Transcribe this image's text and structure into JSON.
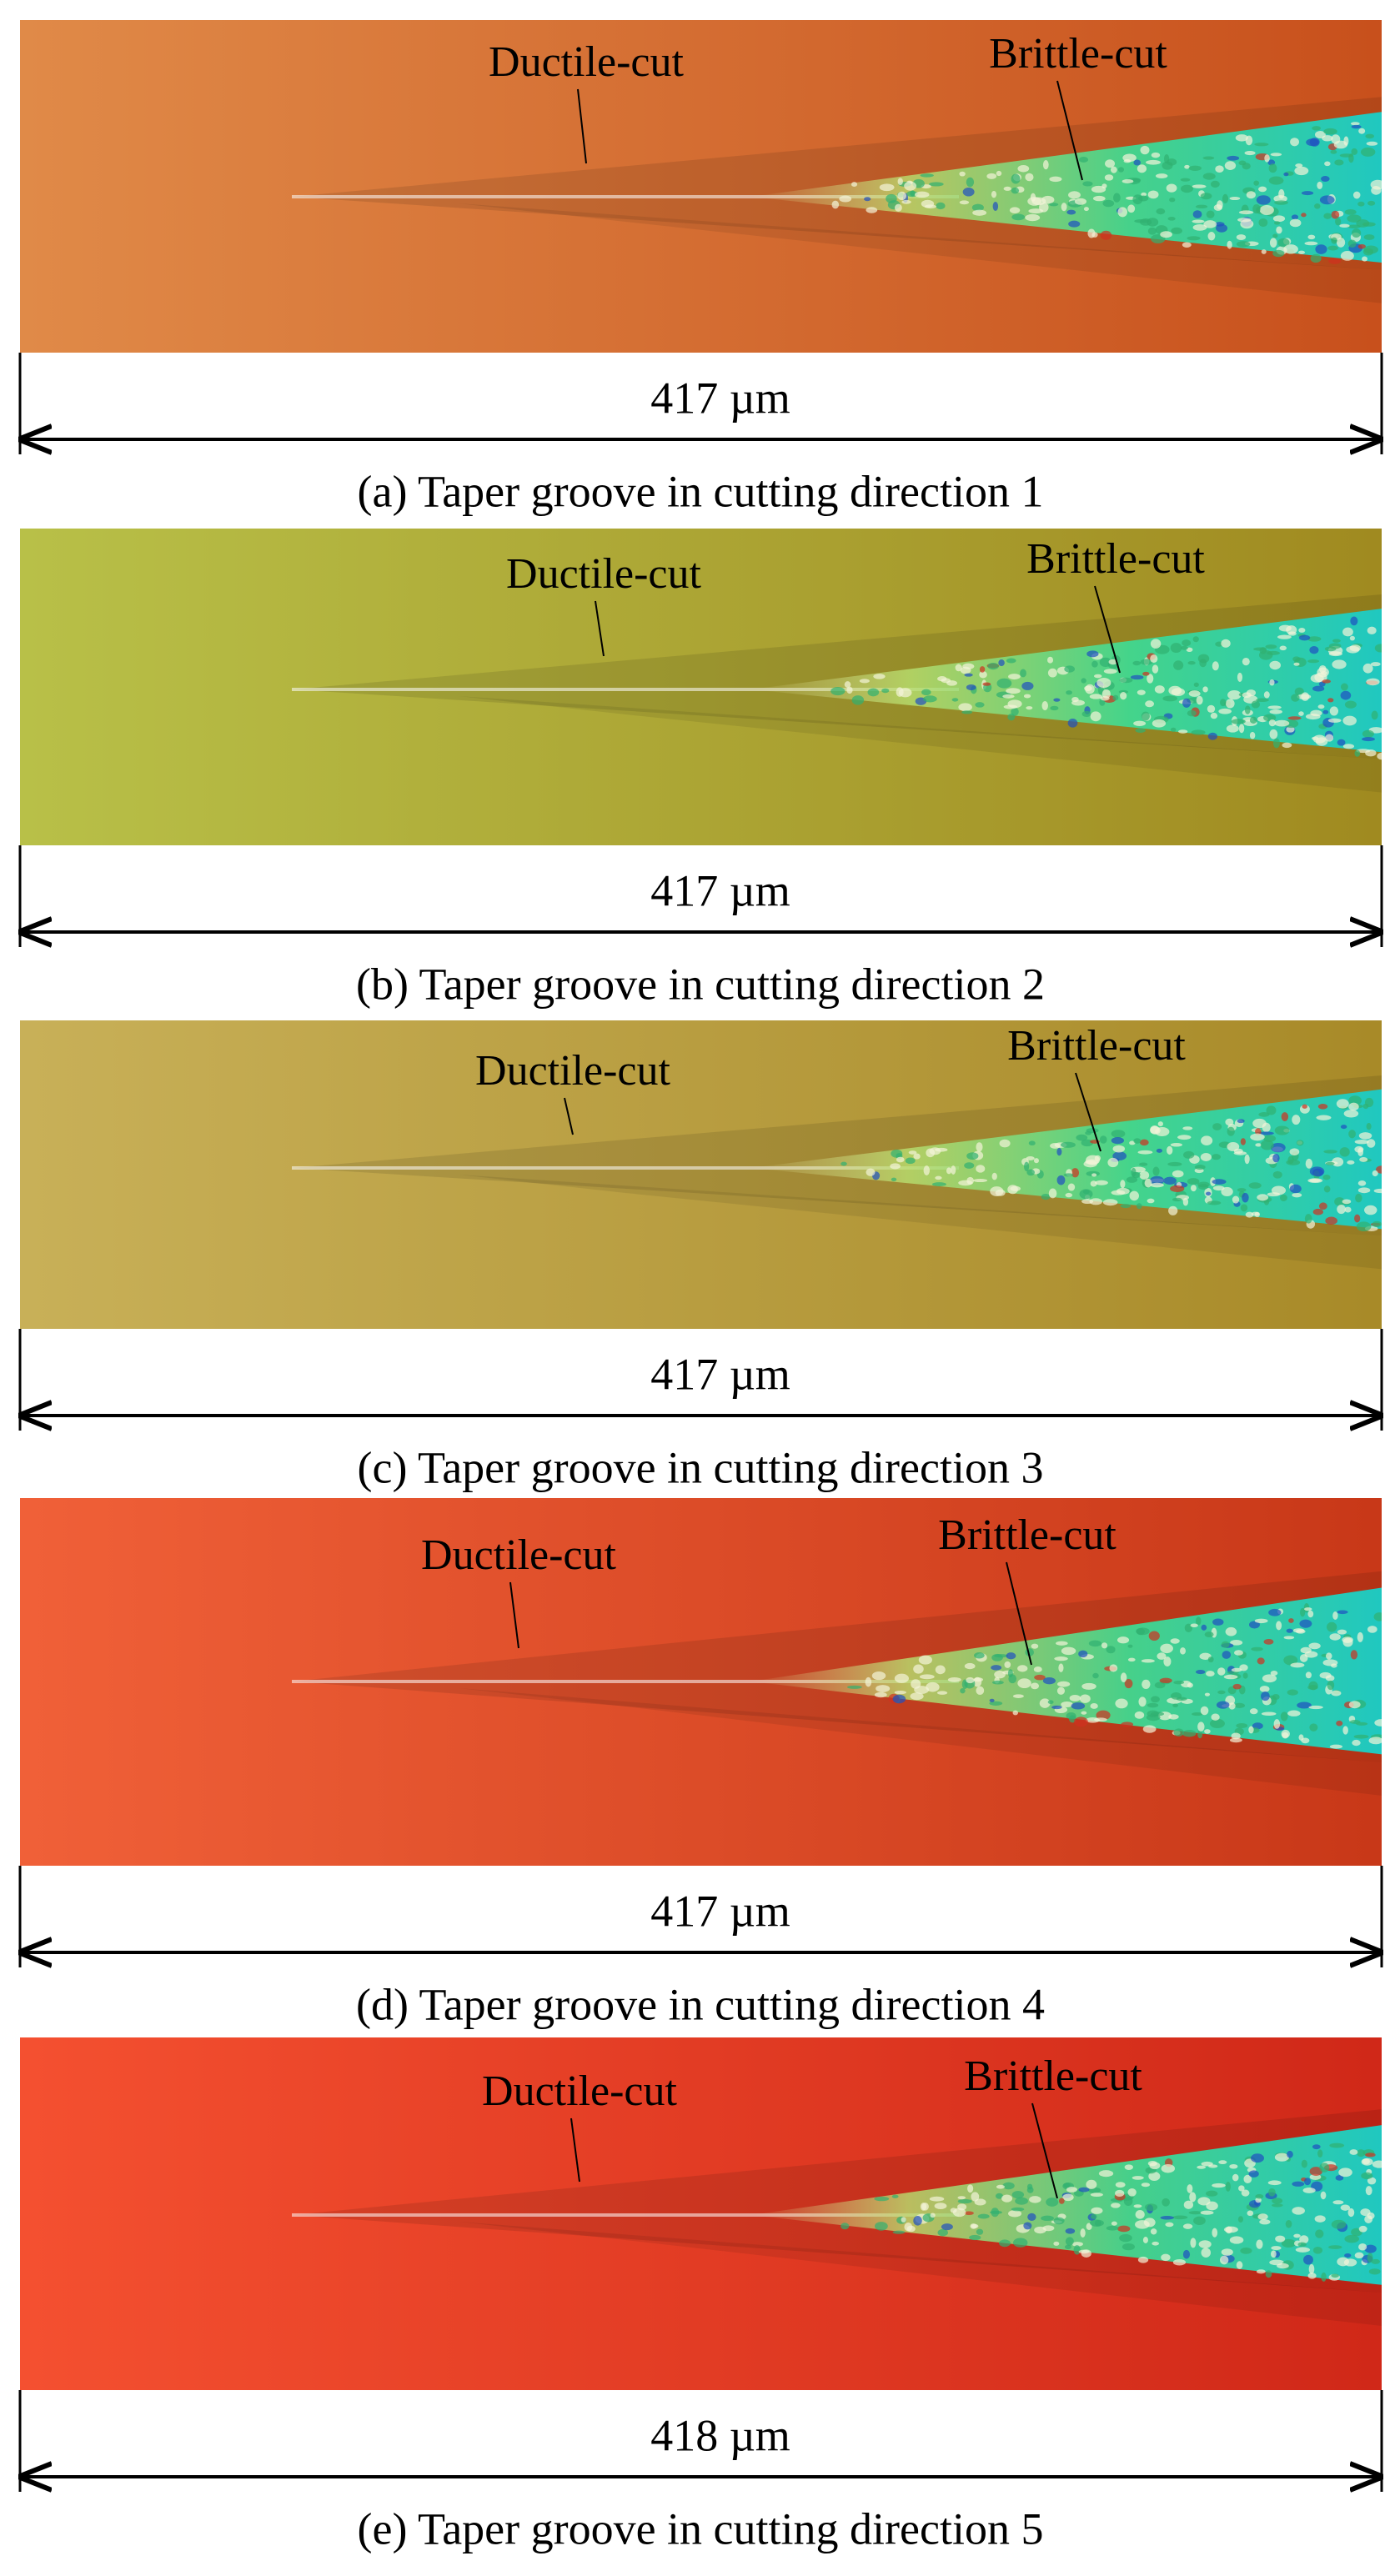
{
  "panels": [
    {
      "caption": "(a) Taper groove in cutting direction 1",
      "scale_label": "417 µm",
      "ductile_label": "Ductile-cut",
      "brittle_label": "Brittle-cut"
    },
    {
      "caption": "(b) Taper groove in cutting direction 2",
      "scale_label": "417 µm",
      "ductile_label": "Ductile-cut",
      "brittle_label": "Brittle-cut"
    },
    {
      "caption": "(c) Taper groove in cutting direction 3",
      "scale_label": "417 µm",
      "ductile_label": "Ductile-cut",
      "brittle_label": "Brittle-cut"
    },
    {
      "caption": "(d) Taper groove in cutting direction 4",
      "scale_label": "417 µm",
      "ductile_label": "Ductile-cut",
      "brittle_label": "Brittle-cut"
    },
    {
      "caption": "(e) Taper groove in cutting direction 5",
      "scale_label": "418 µm",
      "ductile_label": "Ductile-cut",
      "brittle_label": "Brittle-cut"
    }
  ]
}
